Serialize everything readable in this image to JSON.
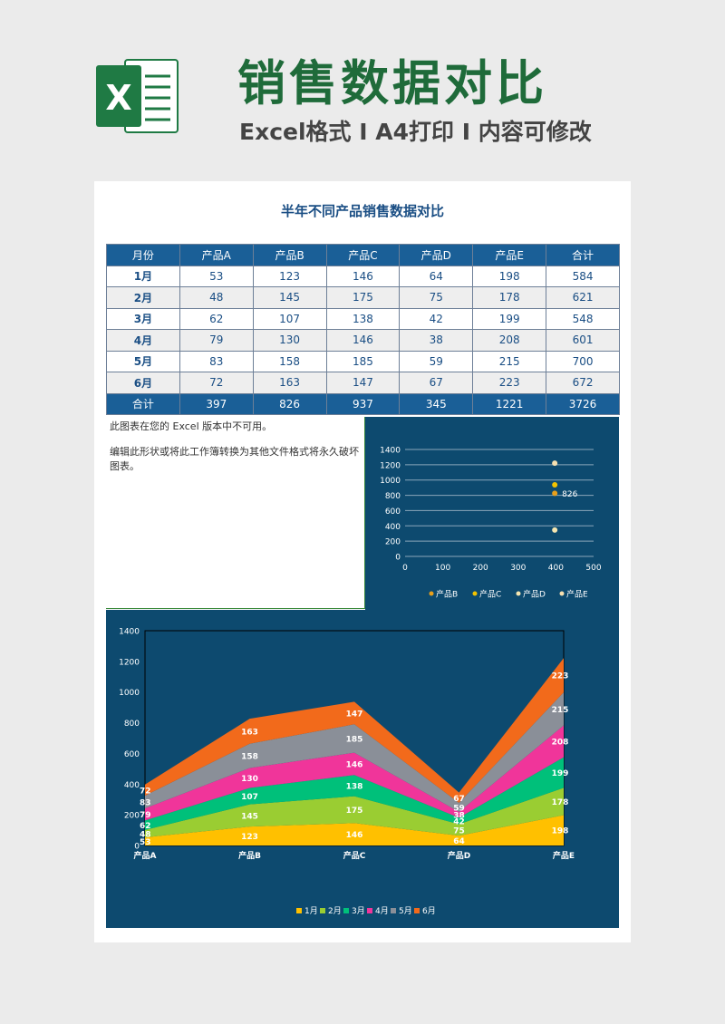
{
  "header": {
    "title": "销售数据对比",
    "subtitle": "Excel格式 Ⅰ A4打印 Ⅰ 内容可修改",
    "logo_letter": "X"
  },
  "sheet": {
    "title": "半年不同产品销售数据对比",
    "columns": [
      "月份",
      "产品A",
      "产品B",
      "产品C",
      "产品D",
      "产品E",
      "合计"
    ],
    "rows": [
      [
        "1月",
        "53",
        "123",
        "146",
        "64",
        "198",
        "584"
      ],
      [
        "2月",
        "48",
        "145",
        "175",
        "75",
        "178",
        "621"
      ],
      [
        "3月",
        "62",
        "107",
        "138",
        "42",
        "199",
        "548"
      ],
      [
        "4月",
        "79",
        "130",
        "146",
        "38",
        "208",
        "601"
      ],
      [
        "5月",
        "83",
        "158",
        "185",
        "59",
        "215",
        "700"
      ],
      [
        "6月",
        "72",
        "163",
        "147",
        "67",
        "223",
        "672"
      ]
    ],
    "totals": [
      "合计",
      "397",
      "826",
      "937",
      "345",
      "1221",
      "3726"
    ]
  },
  "notice": {
    "line1": "此图表在您的 Excel 版本中不可用。",
    "line2": "编辑此形状或将此工作簿转换为其他文件格式将永久破坏图表。"
  },
  "colors": {
    "brand_green": "#1f6b3a",
    "table_blue": "#1a5f97",
    "panel_bg": "#0d4a6f"
  },
  "chart_data": [
    {
      "type": "scatter",
      "xlim": [
        0,
        500
      ],
      "ylim": [
        0,
        1400
      ],
      "x_ticks": [
        0,
        100,
        200,
        300,
        400,
        500
      ],
      "y_ticks": [
        0,
        200,
        400,
        600,
        800,
        1000,
        1200,
        1400
      ],
      "legend": [
        "产品B",
        "产品C",
        "产品D",
        "产品E"
      ],
      "legend_position": "bottom",
      "points": [
        {
          "x": 397,
          "y": 826,
          "label": "826",
          "color": "#e8a01c"
        },
        {
          "x": 397,
          "y": 937,
          "label": "",
          "color": "#f2c300"
        },
        {
          "x": 397,
          "y": 345,
          "label": "",
          "color": "#f5e6b0"
        },
        {
          "x": 397,
          "y": 1221,
          "label": "",
          "color": "#f7e0b0"
        }
      ],
      "grid": true
    },
    {
      "type": "area",
      "stacked": true,
      "categories": [
        "产品A",
        "产品B",
        "产品C",
        "产品D",
        "产品E"
      ],
      "ylim": [
        0,
        1400
      ],
      "y_ticks": [
        0,
        200,
        400,
        600,
        800,
        1000,
        1200,
        1400
      ],
      "legend_position": "bottom",
      "series": [
        {
          "name": "1月",
          "values": [
            53,
            123,
            146,
            64,
            198
          ],
          "color": "#ffc000"
        },
        {
          "name": "2月",
          "values": [
            48,
            145,
            175,
            75,
            178
          ],
          "color": "#9acd32"
        },
        {
          "name": "3月",
          "values": [
            62,
            107,
            138,
            42,
            199
          ],
          "color": "#00c07a"
        },
        {
          "name": "4月",
          "values": [
            79,
            130,
            146,
            38,
            208
          ],
          "color": "#f0359a"
        },
        {
          "name": "5月",
          "values": [
            83,
            158,
            185,
            59,
            215
          ],
          "color": "#8a8f98"
        },
        {
          "name": "6月",
          "values": [
            72,
            163,
            147,
            67,
            223
          ],
          "color": "#f26a1b"
        }
      ]
    }
  ]
}
